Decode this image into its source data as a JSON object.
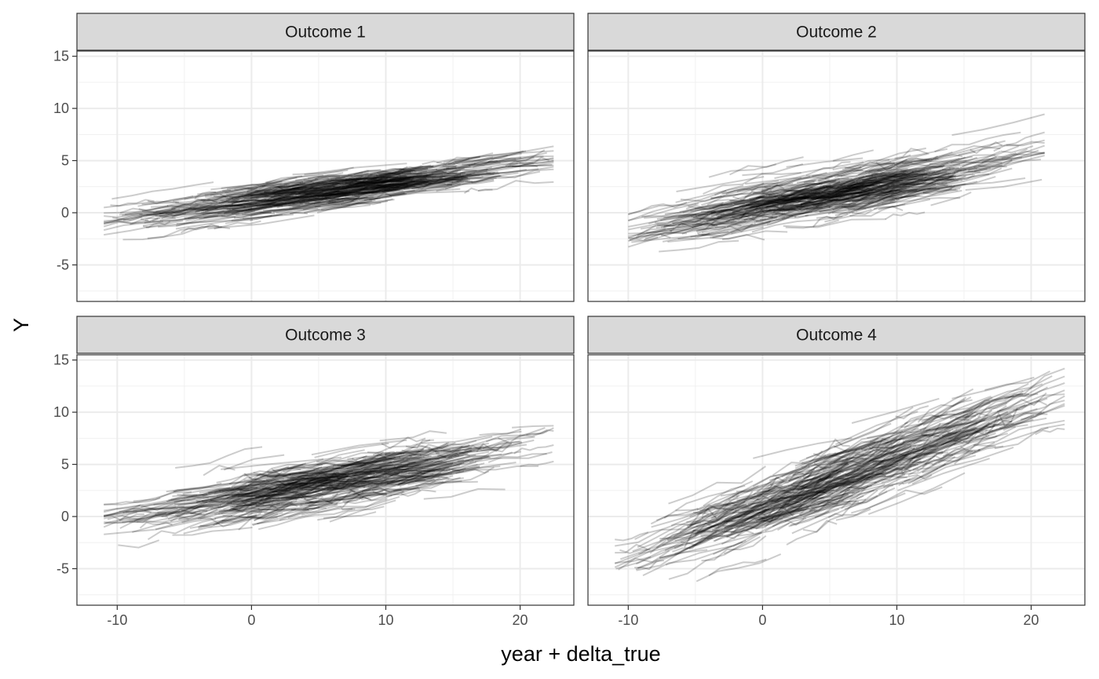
{
  "chart_data": {
    "type": "line",
    "description_of_marks": "many overlapping semi-transparent black line segments (spaghetti plot) per facet",
    "xlabel": "year + delta_true",
    "ylabel": "Y",
    "xlim": [
      -13,
      24
    ],
    "ylim": [
      -8.5,
      15.5
    ],
    "x_ticks": [
      -10,
      0,
      10,
      20
    ],
    "x_tick_labels": [
      "-10",
      "0",
      "10",
      "20"
    ],
    "y_ticks": [
      -5,
      0,
      5,
      10,
      15
    ],
    "y_tick_labels": [
      "-5",
      "0",
      "5",
      "10",
      "15"
    ],
    "grid": true,
    "line_color": "#000000",
    "line_opacity": 0.2,
    "strip_fill": "#d9d9d9",
    "facets": [
      {
        "title": "Outcome 1",
        "x_range": [
          -11,
          22.5
        ],
        "approx_intercept": 1.1,
        "approx_slope": 0.17,
        "approx_spread": 0.8,
        "num_trajectories": 500
      },
      {
        "title": "Outcome 2",
        "x_range": [
          -10,
          21
        ],
        "approx_intercept": 0.6,
        "approx_slope": 0.24,
        "approx_spread": 1.1,
        "num_trajectories": 500
      },
      {
        "title": "Outcome 3",
        "x_range": [
          -11,
          22.5
        ],
        "approx_intercept": 2.0,
        "approx_slope": 0.22,
        "approx_spread": 1.2,
        "num_trajectories": 500
      },
      {
        "title": "Outcome 4",
        "x_range": [
          -11,
          22.5
        ],
        "approx_intercept": 0.8,
        "approx_slope": 0.48,
        "approx_spread": 1.5,
        "num_trajectories": 500
      }
    ]
  }
}
